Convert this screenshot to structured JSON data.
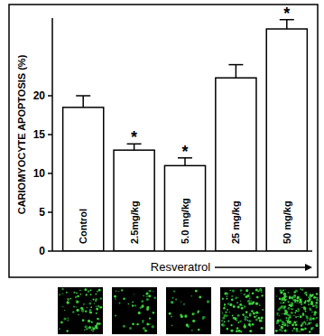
{
  "chart_data": {
    "type": "bar",
    "y_label": "CARIOMYOCYTE APOPTOSIS (%)",
    "x_label": "Resveratrol",
    "categories": [
      "Control",
      "2.5mg/kg",
      "5.0 mg/kg",
      "25 mg/kg",
      "50 mg/kg"
    ],
    "values": [
      18.5,
      13.0,
      11.0,
      22.3,
      28.6
    ],
    "errors": [
      1.5,
      0.8,
      1.0,
      1.7,
      1.2
    ],
    "significance": [
      null,
      "*",
      "*",
      null,
      "*"
    ],
    "color": "#ffffff",
    "ylim": [
      0,
      30
    ],
    "yticks": [
      0,
      5,
      10,
      15,
      20
    ],
    "grid": false
  }
}
